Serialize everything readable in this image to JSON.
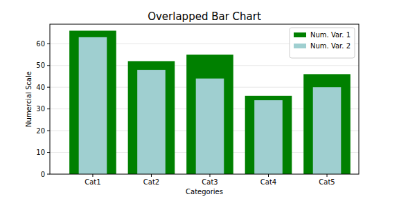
{
  "chart_data": {
    "type": "bar",
    "title": "Overlapped Bar Chart",
    "x_label": "Categories",
    "y_label": "Numercial Scale",
    "categories": [
      "Cat1",
      "Cat2",
      "Cat3",
      "Cat4",
      "Cat5"
    ],
    "series": [
      {
        "name": "Num. Var. 1",
        "color": "#008000",
        "values": [
          66,
          52,
          55,
          36,
          46
        ]
      },
      {
        "name": "Num. Var. 2",
        "color": "#9fcfd0",
        "values": [
          63,
          48,
          44,
          34,
          40
        ]
      }
    ],
    "ylim": [
      0,
      69
    ],
    "yticks": [
      0,
      10,
      20,
      30,
      40,
      50,
      60
    ],
    "grid": true,
    "legend": "upper right"
  }
}
